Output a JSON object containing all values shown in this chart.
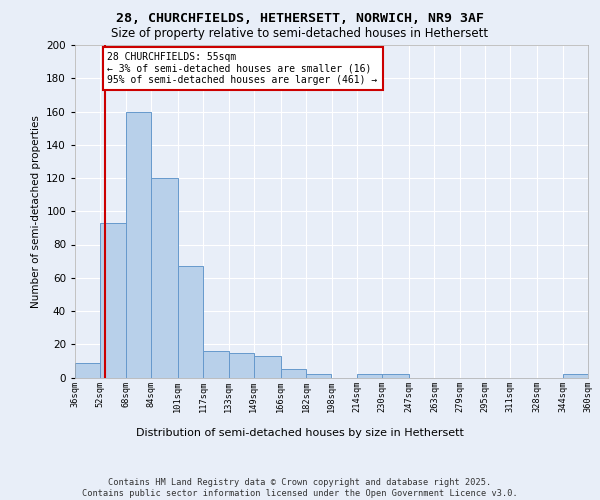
{
  "title1": "28, CHURCHFIELDS, HETHERSETT, NORWICH, NR9 3AF",
  "title2": "Size of property relative to semi-detached houses in Hethersett",
  "xlabel": "Distribution of semi-detached houses by size in Hethersett",
  "ylabel": "Number of semi-detached properties",
  "footer": "Contains HM Land Registry data © Crown copyright and database right 2025.\nContains public sector information licensed under the Open Government Licence v3.0.",
  "bins": [
    36,
    52,
    68,
    84,
    101,
    117,
    133,
    149,
    166,
    182,
    198,
    214,
    230,
    247,
    263,
    279,
    295,
    311,
    328,
    344,
    360
  ],
  "bin_labels": [
    "36sqm",
    "52sqm",
    "68sqm",
    "84sqm",
    "101sqm",
    "117sqm",
    "133sqm",
    "149sqm",
    "166sqm",
    "182sqm",
    "198sqm",
    "214sqm",
    "230sqm",
    "247sqm",
    "263sqm",
    "279sqm",
    "295sqm",
    "311sqm",
    "328sqm",
    "344sqm",
    "360sqm"
  ],
  "values": [
    9,
    93,
    160,
    120,
    67,
    16,
    15,
    13,
    5,
    2,
    0,
    2,
    2,
    0,
    0,
    0,
    0,
    0,
    0,
    2
  ],
  "bar_color": "#b8d0ea",
  "bar_edge_color": "#6699cc",
  "property_size": 55,
  "property_label": "28 CHURCHFIELDS: 55sqm",
  "annotation_line1": "← 3% of semi-detached houses are smaller (16)",
  "annotation_line2": "95% of semi-detached houses are larger (461) →",
  "vline_color": "#cc0000",
  "annotation_box_color": "#cc0000",
  "ylim": [
    0,
    200
  ],
  "yticks": [
    0,
    20,
    40,
    60,
    80,
    100,
    120,
    140,
    160,
    180,
    200
  ],
  "background_color": "#e8eef8",
  "plot_background": "#e8eef8",
  "grid_color": "#ffffff"
}
